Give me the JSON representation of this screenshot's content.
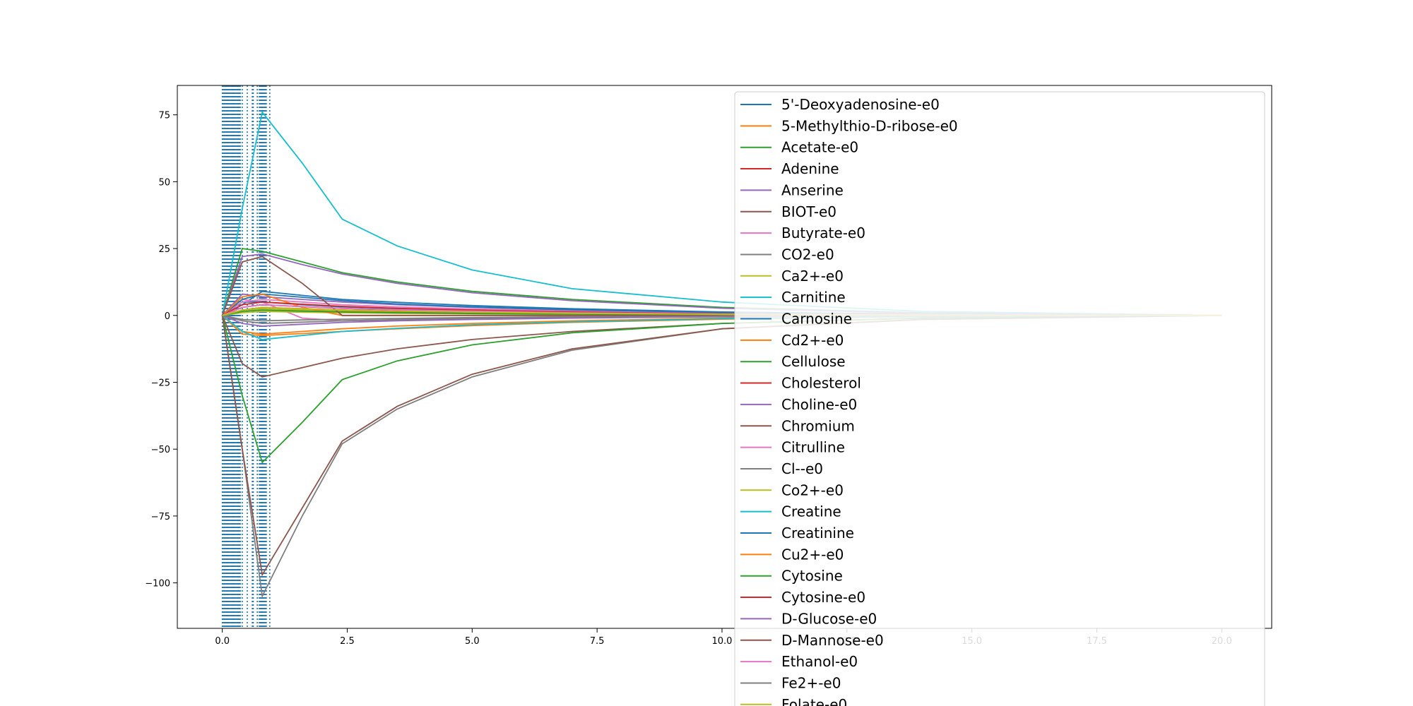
{
  "chart_data": {
    "type": "line",
    "title": "",
    "xlabel": "",
    "ylabel": "",
    "xlim": [
      -0.9,
      21.0
    ],
    "ylim": [
      -117,
      86
    ],
    "xticks": [
      "0.0",
      "2.5",
      "5.0",
      "7.5",
      "10.0",
      "12.5",
      "15.0",
      "17.5",
      "20.0"
    ],
    "yticks": [
      "75",
      "50",
      "25",
      "0",
      "−25",
      "−50",
      "−75",
      "−100"
    ],
    "grid": false,
    "legend_position": "upper right",
    "vertical_dotted_lines": {
      "color": "#1f77b4",
      "x": [
        0.0,
        0.02,
        0.04,
        0.06,
        0.08,
        0.1,
        0.12,
        0.14,
        0.16,
        0.18,
        0.2,
        0.22,
        0.24,
        0.26,
        0.28,
        0.3,
        0.32,
        0.34,
        0.36,
        0.4,
        0.5,
        0.6,
        0.62,
        0.7,
        0.74,
        0.76,
        0.78,
        0.8,
        0.82,
        0.84,
        0.86,
        0.88,
        0.95
      ]
    },
    "x": [
      0.0,
      0.4,
      0.8,
      1.6,
      2.4,
      3.5,
      5.0,
      7.0,
      10.0,
      14.0,
      20.0
    ],
    "series": [
      {
        "name": "5'-Deoxyadenosine-e0",
        "color": "#1f77b4",
        "values": [
          0,
          4,
          9,
          7.5,
          6,
          4.9,
          3.7,
          2.5,
          1.3,
          0.5,
          0
        ]
      },
      {
        "name": "5-Methylthio-D-ribose-e0",
        "color": "#ff7f0e",
        "values": [
          0,
          -7,
          -7.5,
          -6.8,
          -6,
          -5,
          -3.8,
          -2.6,
          -1.4,
          -0.5,
          0
        ]
      },
      {
        "name": "Acetate-e0",
        "color": "#2ca02c",
        "values": [
          0,
          25,
          24,
          20,
          16,
          12.5,
          9,
          6,
          3,
          1,
          0
        ]
      },
      {
        "name": "Adenine",
        "color": "#d62728",
        "values": [
          0,
          3,
          4,
          3.3,
          2.6,
          2,
          1.5,
          1,
          0.5,
          0.2,
          0
        ]
      },
      {
        "name": "Anserine",
        "color": "#9467bd",
        "values": [
          0,
          8,
          7,
          6,
          5,
          4,
          3,
          2,
          1,
          0.4,
          0
        ]
      },
      {
        "name": "BIOT-e0",
        "color": "#8c564b",
        "values": [
          0,
          -18,
          -23,
          -19.5,
          -16,
          -12.5,
          -9,
          -6,
          -3,
          -1,
          0
        ]
      },
      {
        "name": "Butyrate-e0",
        "color": "#e377c2",
        "values": [
          0,
          6,
          5,
          -1,
          -2,
          -1.6,
          -1.2,
          -0.8,
          -0.4,
          -0.1,
          0
        ]
      },
      {
        "name": "CO2-e0",
        "color": "#7f7f7f",
        "values": [
          0,
          -50,
          -105,
          -75,
          -48,
          -35,
          -23,
          -13,
          -5,
          -1.5,
          0
        ]
      },
      {
        "name": "Ca2+-e0",
        "color": "#bcbd22",
        "values": [
          0,
          2,
          2.5,
          2,
          1.6,
          1.2,
          0.9,
          0.6,
          0.3,
          0.1,
          0
        ]
      },
      {
        "name": "Carnitine",
        "color": "#17becf",
        "values": [
          0,
          40,
          76,
          57,
          36,
          26,
          17,
          10,
          5,
          1.5,
          0
        ]
      },
      {
        "name": "Carnosine",
        "color": "#1f77b4",
        "values": [
          0,
          5,
          5,
          4,
          3.2,
          2.5,
          1.8,
          1.2,
          0.6,
          0.2,
          0
        ]
      },
      {
        "name": "Cd2+-e0",
        "color": "#ff7f0e",
        "values": [
          0,
          -6,
          -7,
          -6,
          -5,
          -4,
          -3,
          -2,
          -1,
          -0.3,
          0
        ]
      },
      {
        "name": "Cellulose",
        "color": "#2ca02c",
        "values": [
          0,
          -30,
          -55,
          -40,
          -24,
          -17,
          -11,
          -6.5,
          -3,
          -1,
          0
        ]
      },
      {
        "name": "Cholesterol",
        "color": "#d62728",
        "values": [
          0,
          2,
          3,
          2.5,
          2,
          1.5,
          1.1,
          0.7,
          0.3,
          0.1,
          0
        ]
      },
      {
        "name": "Choline-e0",
        "color": "#9467bd",
        "values": [
          0,
          22,
          23,
          19,
          15.5,
          12,
          8.5,
          5.5,
          2.7,
          0.8,
          0
        ]
      },
      {
        "name": "Chromium",
        "color": "#8c564b",
        "values": [
          0,
          -50,
          -97,
          -72,
          -47,
          -34,
          -22,
          -12.5,
          -5,
          -1.5,
          0
        ]
      },
      {
        "name": "Citrulline",
        "color": "#e377c2",
        "values": [
          0,
          5,
          6,
          5,
          4,
          3.2,
          2.4,
          1.6,
          0.8,
          0.3,
          0
        ]
      },
      {
        "name": "Cl--e0",
        "color": "#7f7f7f",
        "values": [
          0,
          -2,
          -3,
          -2.5,
          -2,
          -1.6,
          -1.2,
          -0.8,
          -0.4,
          -0.1,
          0
        ]
      },
      {
        "name": "Co2+-e0",
        "color": "#bcbd22",
        "values": [
          0,
          1,
          1.5,
          1.2,
          1,
          0.8,
          0.6,
          0.4,
          0.2,
          0.1,
          0
        ]
      },
      {
        "name": "Creatine",
        "color": "#17becf",
        "values": [
          0,
          -6,
          -9,
          -7.5,
          -6,
          -4.8,
          -3.5,
          -2.4,
          -1.2,
          -0.4,
          0
        ]
      },
      {
        "name": "Creatinine",
        "color": "#1f77b4",
        "values": [
          0,
          6,
          8,
          6.8,
          5.5,
          4.3,
          3.2,
          2.1,
          1.1,
          0.3,
          0
        ]
      },
      {
        "name": "Cu2+-e0",
        "color": "#ff7f0e",
        "values": [
          0,
          7,
          8,
          3,
          0,
          0,
          0,
          0,
          0,
          0,
          0
        ]
      },
      {
        "name": "Cytosine",
        "color": "#2ca02c",
        "values": [
          0,
          1.5,
          2,
          1.6,
          1.3,
          1,
          0.7,
          0.5,
          0.2,
          0.1,
          0
        ]
      },
      {
        "name": "Cytosine-e0",
        "color": "#d62728",
        "values": [
          0,
          4,
          5,
          4.2,
          3.4,
          2.7,
          2,
          1.3,
          0.6,
          0.2,
          0
        ]
      },
      {
        "name": "D-Glucose-e0",
        "color": "#9467bd",
        "values": [
          0,
          -3,
          -4,
          -3.3,
          -2.6,
          -2,
          -1.5,
          -1,
          -0.5,
          -0.2,
          0
        ]
      },
      {
        "name": "D-Mannose-e0",
        "color": "#8c564b",
        "values": [
          0,
          20,
          22,
          12,
          0,
          0,
          0,
          0,
          0,
          0,
          0
        ]
      },
      {
        "name": "Ethanol-e0",
        "color": "#e377c2",
        "values": [
          0,
          3,
          4,
          3.3,
          2.7,
          2.1,
          1.6,
          1,
          0.5,
          0.2,
          0
        ]
      },
      {
        "name": "Fe2+-e0",
        "color": "#7f7f7f",
        "values": [
          0,
          -1.5,
          -2,
          -1.7,
          -1.4,
          -1.1,
          -0.8,
          -0.5,
          -0.3,
          -0.1,
          0
        ]
      },
      {
        "name": "Folate-e0",
        "color": "#bcbd22",
        "values": [
          0,
          2,
          3,
          2.5,
          2,
          1.6,
          1.2,
          0.8,
          0.4,
          0.1,
          0
        ]
      }
    ]
  }
}
